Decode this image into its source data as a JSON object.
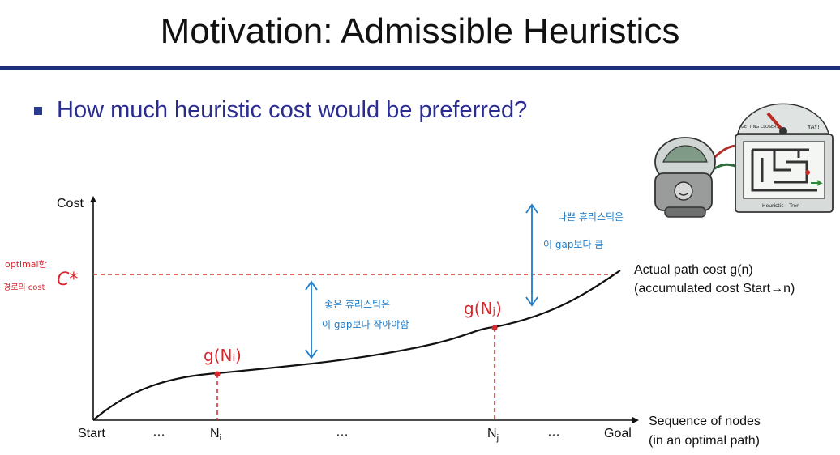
{
  "slide": {
    "title": "Motivation: Admissible Heuristics",
    "bullet": "How much heuristic cost would be preferred?"
  },
  "chart": {
    "y_axis_label": "Cost",
    "x_axis_label_line1": "Sequence of nodes",
    "x_axis_label_line2": "(in an optimal path)",
    "ticks": {
      "start": "Start",
      "dots1": "…",
      "ni": "N",
      "ni_sub": "i",
      "dots2": "…",
      "nj": "N",
      "nj_sub": "j",
      "dots3": "…",
      "goal": "Goal"
    },
    "curve_label_line1": "Actual path cost g(n)",
    "curve_label_line2": "(accumulated cost Start→n)"
  },
  "annotations": {
    "optimal_line1": "optimal한",
    "optimal_line2": "경로의 cost",
    "c_star": "C*",
    "g_ni": "g(Nᵢ)",
    "g_nj": "g(Nⱼ)",
    "good_line1": "좋은 휴리스틱은",
    "good_line2": "이 gap보다 작아야함",
    "bad_line1": "나쁜 휴리스틱은",
    "bad_line2": "이 gap보다 큼"
  },
  "illustration": {
    "gauge_left": "GETTING CLOSER…",
    "gauge_right": "YAY!",
    "monitor_caption": "Heuristic – Tron"
  },
  "colors": {
    "title_rule": "#1c2e7c",
    "bullet_text": "#2a2c8f",
    "dashed": "#d8262d",
    "annotation_blue": "#1e7cc8"
  }
}
